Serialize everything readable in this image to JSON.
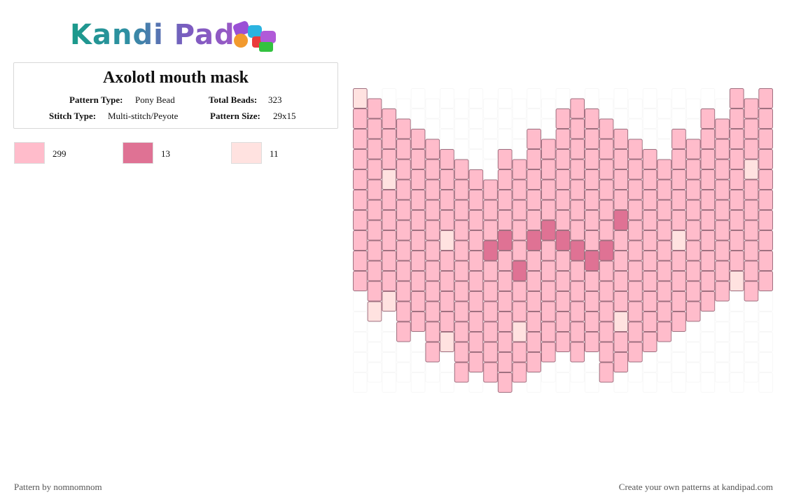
{
  "logo": {
    "text": "Kandi Pad"
  },
  "pattern": {
    "title": "Axolotl mouth mask",
    "type_label": "Pattern Type:",
    "type_value": "Pony Bead",
    "total_label": "Total Beads:",
    "total_value": "323",
    "stitch_label": "Stitch Type:",
    "stitch_value": "Multi-stitch/Peyote",
    "size_label": "Pattern Size:",
    "size_value": "29x15"
  },
  "legend": [
    {
      "color": "#ffbccb",
      "count": "299"
    },
    {
      "color": "#df7294",
      "count": "13"
    },
    {
      "color": "#ffe2e0",
      "count": "11"
    }
  ],
  "footer": {
    "credit": "Pattern by nomnomnom",
    "cta": "Create your own patterns at kandipad.com"
  },
  "grid": {
    "columns": 29,
    "rows": 15,
    "empty_color": "#f7f7f7",
    "dark_color": "#df7294",
    "light_color": "#ffe2e0",
    "base_color": "#ffbccb",
    "col_ranges": [
      [
        0,
        9
      ],
      [
        0,
        10
      ],
      [
        1,
        10
      ],
      [
        1,
        11
      ],
      [
        2,
        11
      ],
      [
        2,
        12
      ],
      [
        3,
        12
      ],
      [
        3,
        13
      ],
      [
        4,
        13
      ],
      [
        4,
        14
      ],
      [
        3,
        14
      ],
      [
        3,
        13
      ],
      [
        2,
        13
      ],
      [
        2,
        12
      ],
      [
        1,
        12
      ],
      [
        0,
        12
      ],
      [
        1,
        12
      ],
      [
        1,
        13
      ],
      [
        2,
        13
      ],
      [
        2,
        12
      ],
      [
        3,
        12
      ],
      [
        3,
        11
      ],
      [
        2,
        11
      ],
      [
        2,
        10
      ],
      [
        1,
        10
      ],
      [
        1,
        9
      ],
      [
        0,
        9
      ],
      [
        0,
        9
      ],
      [
        0,
        9
      ]
    ],
    "dark_beads": [
      [
        9,
        7
      ],
      [
        10,
        7
      ],
      [
        11,
        8
      ],
      [
        12,
        7
      ],
      [
        13,
        6
      ],
      [
        14,
        7
      ],
      [
        15,
        7
      ],
      [
        16,
        8
      ],
      [
        17,
        7
      ],
      [
        18,
        6
      ],
      [
        9,
        1
      ],
      [
        11,
        1
      ],
      [
        13,
        1
      ]
    ],
    "light_beads": [
      [
        0,
        0
      ],
      [
        1,
        10
      ],
      [
        2,
        4
      ],
      [
        2,
        10
      ],
      [
        6,
        7
      ],
      [
        6,
        12
      ],
      [
        11,
        11
      ],
      [
        18,
        11
      ],
      [
        22,
        7
      ],
      [
        26,
        9
      ],
      [
        27,
        3
      ]
    ]
  }
}
